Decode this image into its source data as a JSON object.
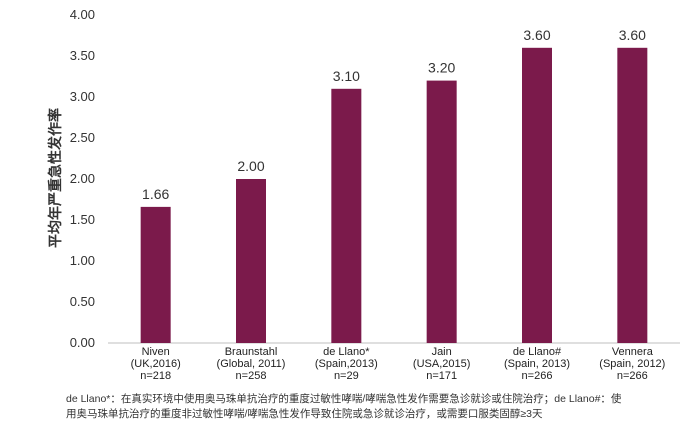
{
  "chart_data": {
    "type": "bar",
    "ylabel": "平均年严重急性发作率",
    "ylim": [
      0,
      4
    ],
    "yticks": [
      "0.00",
      "0.50",
      "1.00",
      "1.50",
      "2.00",
      "2.50",
      "3.00",
      "3.50",
      "4.00"
    ],
    "ytick_values": [
      0,
      0.5,
      1,
      1.5,
      2,
      2.5,
      3,
      3.5,
      4
    ],
    "bar_color": "#7b1a4b",
    "categories": [
      {
        "lines": [
          "Niven",
          "(UK,2016)",
          "n=218"
        ]
      },
      {
        "lines": [
          "Braunstahl",
          "(Global, 2011)",
          "n=258"
        ]
      },
      {
        "lines": [
          "de Llano*",
          "(Spain,2013)",
          "n=29"
        ]
      },
      {
        "lines": [
          "Jain",
          "(USA,2015)",
          "n=171"
        ]
      },
      {
        "lines": [
          "de Llano#",
          "(Spain, 2013)",
          "n=266"
        ]
      },
      {
        "lines": [
          "Vennera",
          "(Spain, 2012)",
          "n=266"
        ]
      }
    ],
    "values": [
      1.66,
      2.0,
      3.1,
      3.2,
      3.6,
      3.6
    ],
    "value_labels": [
      "1.66",
      "2.00",
      "3.10",
      "3.20",
      "3.60",
      "3.60"
    ]
  },
  "footnote": {
    "line1": "de Llano*：在真实环境中使用奥马珠单抗治疗的重度过敏性哮喘/哮喘急性发作需要急诊就诊或住院治疗；de Llano#：使",
    "line2": "用奥马珠单抗治疗的重度非过敏性哮喘/哮喘急性发作导致住院或急诊就诊治疗，或需要口服类固醇≥3天"
  }
}
